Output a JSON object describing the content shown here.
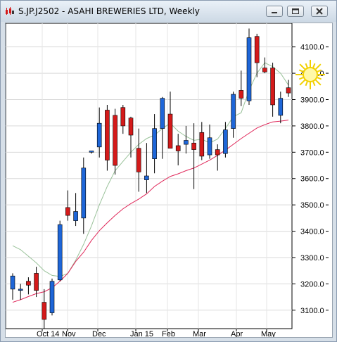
{
  "window": {
    "title": "S.JP.J2502 - ASAHI BREWERIES LTD, Weekly",
    "buttons": [
      "minimize",
      "restore",
      "close"
    ]
  },
  "chart_data": {
    "type": "candlestick",
    "title": "S.JP.J2502 - ASAHI BREWERIES LTD, Weekly",
    "xlabels": [
      "Oct 14",
      "Nov",
      "Dec",
      "Jan 15",
      "Feb",
      "Mar",
      "Apr",
      "May"
    ],
    "ylim": [
      3030,
      4190
    ],
    "yticks": [
      3100,
      3200,
      3300,
      3400,
      3500,
      3600,
      3700,
      3800,
      3900,
      4000,
      4100
    ],
    "ytick_labels": [
      "3100.0",
      "3200.0",
      "3300.0",
      "3400.0",
      "3500.0",
      "3600.0",
      "3700.0",
      "3800.0",
      "3900.0",
      "4000.0",
      "4100.0"
    ],
    "colors": {
      "up": "#1e66d8",
      "down": "#d41a1a",
      "wick": "#000000",
      "ma_fast": "#9ac29a",
      "ma_slow": "#e0285a"
    },
    "candles": [
      {
        "o": 3180,
        "h": 3240,
        "l": 3140,
        "c": 3230
      },
      {
        "o": 3175,
        "h": 3200,
        "l": 3140,
        "c": 3180
      },
      {
        "o": 3210,
        "h": 3225,
        "l": 3160,
        "c": 3195
      },
      {
        "o": 3240,
        "h": 3265,
        "l": 3150,
        "c": 3175
      },
      {
        "o": 3130,
        "h": 3180,
        "l": 3030,
        "c": 3065
      },
      {
        "o": 3090,
        "h": 3220,
        "l": 3080,
        "c": 3210
      },
      {
        "o": 3215,
        "h": 3440,
        "l": 3210,
        "c": 3425
      },
      {
        "o": 3490,
        "h": 3555,
        "l": 3440,
        "c": 3460
      },
      {
        "o": 3440,
        "h": 3545,
        "l": 3420,
        "c": 3475
      },
      {
        "o": 3450,
        "h": 3680,
        "l": 3390,
        "c": 3640
      },
      {
        "o": 3700,
        "h": 3705,
        "l": 3695,
        "c": 3705
      },
      {
        "o": 3720,
        "h": 3870,
        "l": 3680,
        "c": 3810
      },
      {
        "o": 3860,
        "h": 3880,
        "l": 3630,
        "c": 3670
      },
      {
        "o": 3840,
        "h": 3865,
        "l": 3615,
        "c": 3650
      },
      {
        "o": 3870,
        "h": 3880,
        "l": 3770,
        "c": 3800
      },
      {
        "o": 3830,
        "h": 3835,
        "l": 3680,
        "c": 3765
      },
      {
        "o": 3715,
        "h": 3790,
        "l": 3550,
        "c": 3625
      },
      {
        "o": 3595,
        "h": 3735,
        "l": 3545,
        "c": 3610
      },
      {
        "o": 3675,
        "h": 3845,
        "l": 3620,
        "c": 3790
      },
      {
        "o": 3790,
        "h": 3910,
        "l": 3675,
        "c": 3905
      },
      {
        "o": 3845,
        "h": 3930,
        "l": 3715,
        "c": 3715
      },
      {
        "o": 3725,
        "h": 3770,
        "l": 3650,
        "c": 3705
      },
      {
        "o": 3730,
        "h": 3800,
        "l": 3695,
        "c": 3745
      },
      {
        "o": 3735,
        "h": 3810,
        "l": 3560,
        "c": 3710
      },
      {
        "o": 3775,
        "h": 3815,
        "l": 3670,
        "c": 3685
      },
      {
        "o": 3690,
        "h": 3805,
        "l": 3675,
        "c": 3755
      },
      {
        "o": 3710,
        "h": 3730,
        "l": 3630,
        "c": 3690
      },
      {
        "o": 3695,
        "h": 3815,
        "l": 3680,
        "c": 3785
      },
      {
        "o": 3790,
        "h": 3930,
        "l": 3755,
        "c": 3920
      },
      {
        "o": 3935,
        "h": 4010,
        "l": 3875,
        "c": 3905
      },
      {
        "o": 3895,
        "h": 4170,
        "l": 3880,
        "c": 4135
      },
      {
        "o": 4140,
        "h": 4150,
        "l": 3985,
        "c": 4040
      },
      {
        "o": 4020,
        "h": 4060,
        "l": 4000,
        "c": 4005
      },
      {
        "o": 4020,
        "h": 4040,
        "l": 3835,
        "c": 3880
      },
      {
        "o": 3840,
        "h": 3930,
        "l": 3810,
        "c": 3905
      },
      {
        "o": 3945,
        "h": 3975,
        "l": 3910,
        "c": 3925
      }
    ],
    "ma_fast": [
      3345,
      3330,
      3305,
      3280,
      3250,
      3232,
      3228,
      3240,
      3290,
      3350,
      3420,
      3500,
      3570,
      3630,
      3665,
      3700,
      3730,
      3752,
      3765,
      3790,
      3810,
      3780,
      3760,
      3745,
      3750,
      3735,
      3750,
      3790,
      3835,
      3850,
      3935,
      4000,
      4040,
      4025,
      4000,
      3955
    ],
    "ma_slow": [
      3130,
      3140,
      3152,
      3163,
      3170,
      3185,
      3210,
      3240,
      3285,
      3320,
      3365,
      3402,
      3432,
      3460,
      3485,
      3505,
      3522,
      3542,
      3570,
      3590,
      3608,
      3618,
      3630,
      3640,
      3655,
      3670,
      3688,
      3708,
      3730,
      3752,
      3772,
      3792,
      3805,
      3815,
      3818,
      3822
    ]
  }
}
